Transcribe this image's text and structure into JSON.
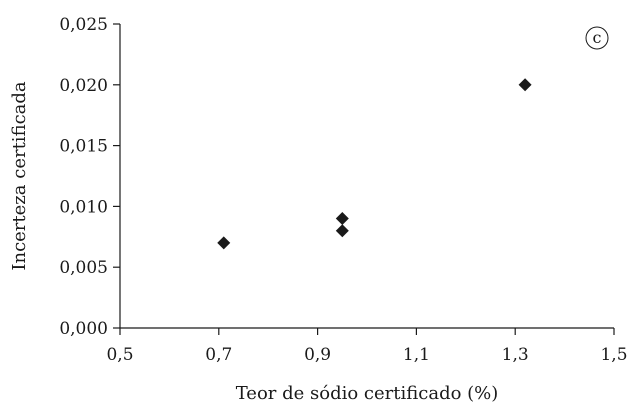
{
  "chart_data": {
    "type": "scatter",
    "panel_label": "c",
    "xlabel": "Teor de sódio certificado (%)",
    "ylabel": "Incerteza certificada",
    "xlim": [
      0.5,
      1.5
    ],
    "ylim": [
      0.0,
      0.025
    ],
    "xticks": [
      "0,5",
      "0,7",
      "0,9",
      "1,1",
      "1,3",
      "1,5"
    ],
    "yticks": [
      "0,000",
      "0,005",
      "0,010",
      "0,015",
      "0,020",
      "0,025"
    ],
    "marker": "diamond",
    "marker_color": "#1a1a1a",
    "grid": false,
    "points": [
      {
        "x": 0.71,
        "y": 0.007
      },
      {
        "x": 0.95,
        "y": 0.009
      },
      {
        "x": 0.95,
        "y": 0.008
      },
      {
        "x": 1.32,
        "y": 0.02
      }
    ]
  }
}
